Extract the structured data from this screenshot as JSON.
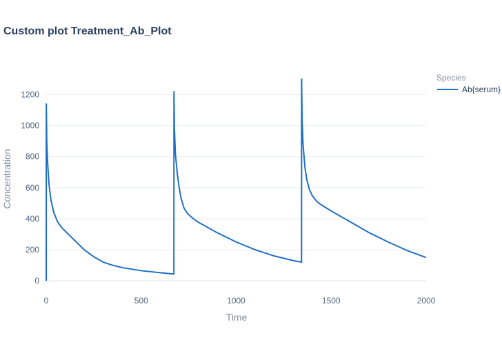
{
  "colors": {
    "series": "#1f6fc5",
    "grid": "#ebeff3",
    "text": "#2a3f5f",
    "muted": "#7f8c9c"
  },
  "chart_data": {
    "type": "line",
    "title": "Custom plot Treatment_Ab_Plot",
    "xlabel": "Time",
    "ylabel": "Concentration",
    "xlim": [
      0,
      2000
    ],
    "ylim": [
      -75,
      1300
    ],
    "xticks": [
      0,
      500,
      1000,
      1500,
      2000
    ],
    "yticks": [
      0,
      200,
      400,
      600,
      800,
      1000,
      1200
    ],
    "grid": true,
    "legend": {
      "title": "Species",
      "placement": "top-right"
    },
    "series": [
      {
        "name": "Ab{serum}",
        "color": "#1f6fc5",
        "x": [
          0,
          0.5,
          3,
          8,
          15,
          25,
          40,
          60,
          80,
          100,
          150,
          200,
          250,
          300,
          350,
          400,
          500,
          600,
          672,
          672.5,
          675,
          680,
          690,
          700,
          710,
          725,
          740,
          760,
          780,
          800,
          900,
          1000,
          1100,
          1200,
          1300,
          1344,
          1344.5,
          1347,
          1352,
          1362,
          1372,
          1385,
          1400,
          1415,
          1430,
          1445,
          1460,
          1500,
          1600,
          1700,
          1800,
          1900,
          2000
        ],
        "y": [
          0,
          1140,
          900,
          750,
          620,
          520,
          440,
          380,
          345,
          320,
          260,
          200,
          155,
          120,
          100,
          85,
          65,
          52,
          43,
          1220,
          980,
          820,
          690,
          600,
          530,
          470,
          440,
          415,
          395,
          378,
          310,
          250,
          200,
          160,
          130,
          120,
          1300,
          1040,
          880,
          730,
          650,
          590,
          550,
          525,
          505,
          492,
          480,
          450,
          380,
          310,
          250,
          195,
          150
        ]
      }
    ]
  }
}
